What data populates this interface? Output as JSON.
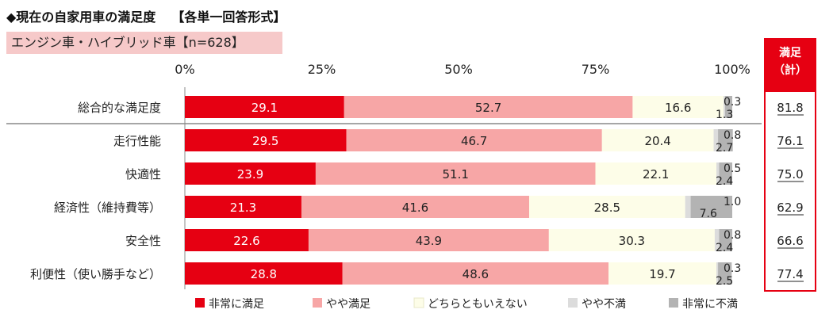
{
  "title": "◆現在の自家用車の満足度",
  "format_note": "【各単一回答形式】",
  "subtitle": "エンジン車・ハイブリッド車【n=628】",
  "sat_header": {
    "line1": "満足",
    "line2": "（計）"
  },
  "colors": {
    "very_satisfied": "#e60012",
    "somewhat_satisfied": "#f7a6a6",
    "neutral": "#fdfde8",
    "somewhat_dissatisfied": "#dcdcdc",
    "very_dissatisfied": "#b3b3b3",
    "accent": "#e60012"
  },
  "chart_data": {
    "type": "bar",
    "orientation": "horizontal",
    "stacked": true,
    "xlim": [
      0,
      100
    ],
    "x_ticks": [
      "0%",
      "25%",
      "50%",
      "75%",
      "100%"
    ],
    "categories": [
      "総合的な満足度",
      "走行性能",
      "快適性",
      "経済性（維持費等）",
      "安全性",
      "利便性（使い勝手など）"
    ],
    "series": [
      {
        "name": "非常に満足",
        "key": "very_satisfied",
        "values": [
          29.1,
          29.5,
          23.9,
          21.3,
          22.6,
          28.8
        ]
      },
      {
        "name": "やや満足",
        "key": "somewhat_satisfied",
        "values": [
          52.7,
          46.7,
          51.1,
          41.6,
          43.9,
          48.6
        ]
      },
      {
        "name": "どちらともいえない",
        "key": "neutral",
        "values": [
          16.6,
          20.4,
          22.1,
          28.5,
          30.3,
          19.7
        ]
      },
      {
        "name": "やや不満",
        "key": "somewhat_dissatisfied",
        "values": [
          0.3,
          0.8,
          0.5,
          1.0,
          0.8,
          0.3
        ]
      },
      {
        "name": "非常に不満",
        "key": "very_dissatisfied",
        "values": [
          1.3,
          2.7,
          2.4,
          7.6,
          2.4,
          2.5
        ]
      }
    ],
    "satisfaction_total": [
      "81.8",
      "76.1",
      "75.0",
      "62.9",
      "66.6",
      "77.4"
    ],
    "legend_position": "bottom"
  }
}
